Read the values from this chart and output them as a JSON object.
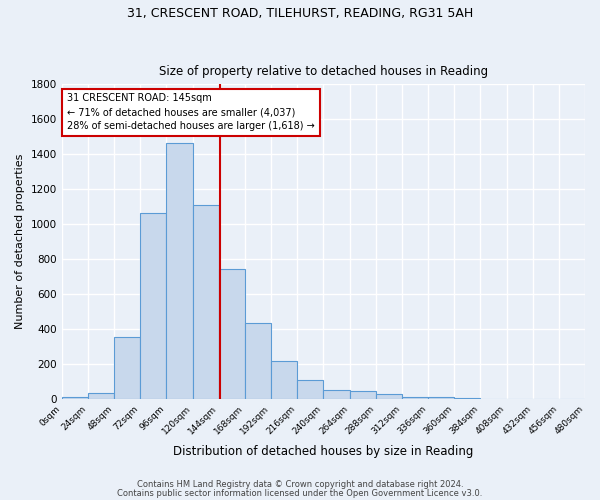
{
  "title1": "31, CRESCENT ROAD, TILEHURST, READING, RG31 5AH",
  "title2": "Size of property relative to detached houses in Reading",
  "xlabel": "Distribution of detached houses by size in Reading",
  "ylabel": "Number of detached properties",
  "footer1": "Contains HM Land Registry data © Crown copyright and database right 2024.",
  "footer2": "Contains public sector information licensed under the Open Government Licence v3.0.",
  "bin_edges": [
    0,
    24,
    48,
    72,
    96,
    120,
    144,
    168,
    192,
    216,
    240,
    264,
    288,
    312,
    336,
    360,
    384,
    408,
    432,
    456,
    480
  ],
  "bar_heights": [
    10,
    35,
    355,
    1060,
    1460,
    1110,
    745,
    435,
    220,
    110,
    55,
    45,
    30,
    15,
    10,
    5,
    3,
    2,
    1,
    1
  ],
  "bar_color": "#c8d8ec",
  "bar_edgecolor": "#5b9bd5",
  "property_size": 145,
  "vline_color": "#cc0000",
  "annotation_line1": "31 CRESCENT ROAD: 145sqm",
  "annotation_line2": "← 71% of detached houses are smaller (4,037)",
  "annotation_line3": "28% of semi-detached houses are larger (1,618) →",
  "annotation_box_edgecolor": "#cc0000",
  "annotation_box_facecolor": "#ffffff",
  "background_color": "#eaf0f8",
  "plot_bg_color": "#eaf0f8",
  "grid_color": "#ffffff",
  "ylim": [
    0,
    1800
  ],
  "xlim": [
    0,
    480
  ],
  "yticks": [
    0,
    200,
    400,
    600,
    800,
    1000,
    1200,
    1400,
    1600,
    1800
  ]
}
